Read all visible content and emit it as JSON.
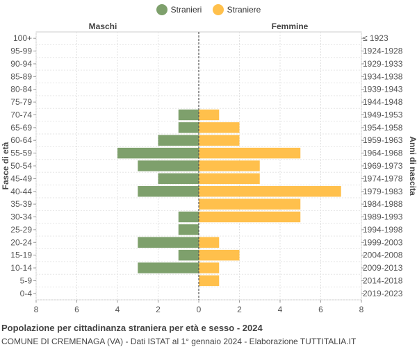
{
  "legend": {
    "male_label": "Stranieri",
    "female_label": "Straniere"
  },
  "colors": {
    "male": "#7ea06c",
    "female": "#ffc04c"
  },
  "chart_data": {
    "type": "bar",
    "orientation": "horizontal-pyramid",
    "left_header": "Maschi",
    "right_header": "Femmine",
    "ylabel_left": "Fasce di età",
    "ylabel_right": "Anni di nascita",
    "xlim": [
      -8,
      8
    ],
    "xticks": [
      -8,
      -6,
      -4,
      -2,
      0,
      2,
      4,
      6,
      8
    ],
    "xtick_labels": [
      "8",
      "6",
      "4",
      "2",
      "0",
      "2",
      "4",
      "6",
      "8"
    ],
    "categories": [
      "100+",
      "95-99",
      "90-94",
      "85-89",
      "80-84",
      "75-79",
      "70-74",
      "65-69",
      "60-64",
      "55-59",
      "50-54",
      "45-49",
      "40-44",
      "35-39",
      "30-34",
      "25-29",
      "20-24",
      "15-19",
      "10-14",
      "5-9",
      "0-4"
    ],
    "birth_years": [
      "≤ 1923",
      "1924-1928",
      "1929-1933",
      "1934-1938",
      "1939-1943",
      "1944-1948",
      "1949-1953",
      "1954-1958",
      "1959-1963",
      "1964-1968",
      "1969-1973",
      "1974-1978",
      "1979-1983",
      "1984-1988",
      "1989-1993",
      "1994-1998",
      "1999-2003",
      "2004-2008",
      "2009-2013",
      "2014-2018",
      "2019-2023"
    ],
    "series": [
      {
        "name": "Stranieri",
        "values": [
          0,
          0,
          0,
          0,
          0,
          0,
          1,
          1,
          2,
          4,
          3,
          2,
          3,
          0,
          1,
          1,
          3,
          1,
          3,
          0,
          0
        ]
      },
      {
        "name": "Straniere",
        "values": [
          0,
          0,
          0,
          0,
          0,
          0,
          1,
          2,
          2,
          5,
          3,
          3,
          7,
          5,
          5,
          0,
          1,
          2,
          1,
          1,
          0
        ]
      }
    ]
  },
  "footer": {
    "title": "Popolazione per cittadinanza straniera per età e sesso - 2024",
    "subtitle": "COMUNE DI CREMENAGA (VA) - Dati ISTAT al 1° gennaio 2024 - Elaborazione TUTTITALIA.IT"
  }
}
